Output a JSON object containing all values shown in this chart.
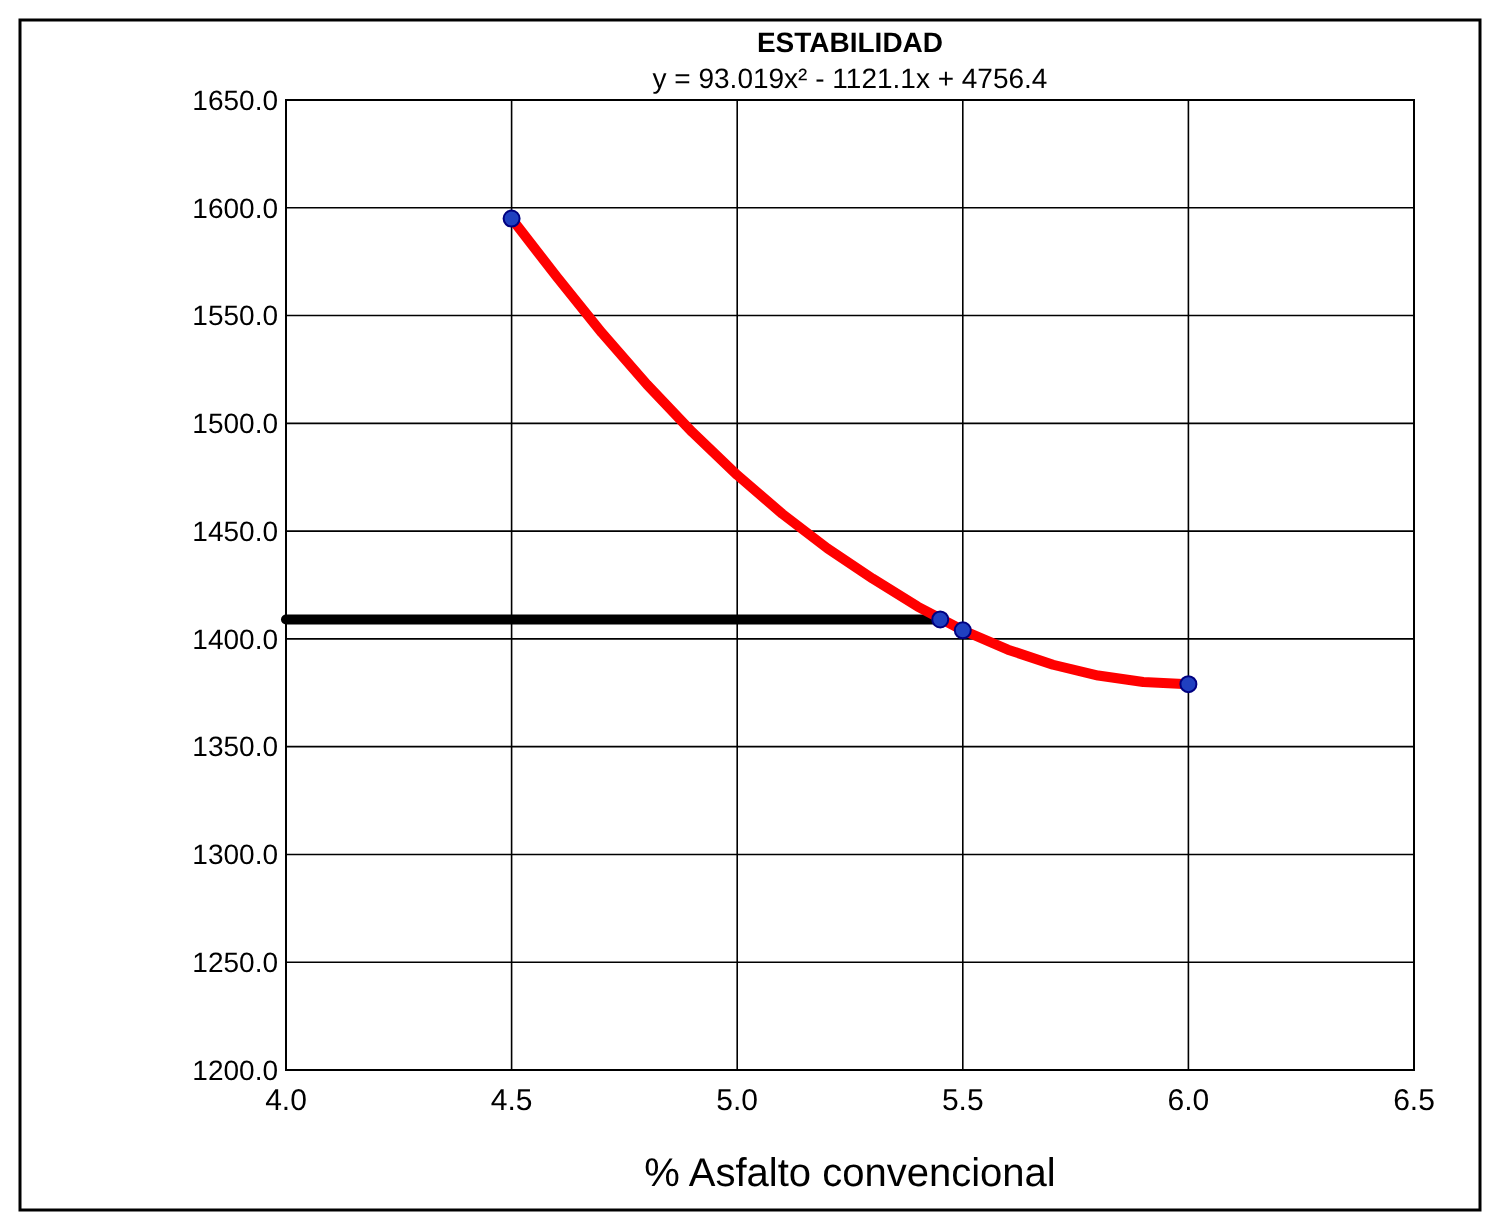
{
  "chart_data": {
    "type": "line",
    "title": "ESTABILIDAD",
    "subtitle": "y = 93.019x² - 1121.1x + 4756.4",
    "xlabel": "% Asfalto convencional",
    "grid": true,
    "xlim": [
      4.0,
      6.5
    ],
    "xticks": [
      {
        "value": 4.0,
        "label": "4.0"
      },
      {
        "value": 4.5,
        "label": "4.5"
      },
      {
        "value": 5.0,
        "label": "5.0"
      },
      {
        "value": 5.5,
        "label": "5.5"
      },
      {
        "value": 6.0,
        "label": "6.0"
      },
      {
        "value": 6.5,
        "label": "6.5"
      }
    ],
    "ylim": [
      1200,
      1650
    ],
    "yticks": [
      {
        "value": 1200,
        "label": "1200.0"
      },
      {
        "value": 1250,
        "label": "1250.0"
      },
      {
        "value": 1300,
        "label": "1300.0"
      },
      {
        "value": 1350,
        "label": "1350.0"
      },
      {
        "value": 1400,
        "label": "1400.0"
      },
      {
        "value": 1450,
        "label": "1450.0"
      },
      {
        "value": 1500,
        "label": "1500.0"
      },
      {
        "value": 1550,
        "label": "1550.0"
      },
      {
        "value": 1600,
        "label": "1600.0"
      },
      {
        "value": 1650,
        "label": "1650.0"
      }
    ],
    "series": [
      {
        "type": "line",
        "color": "#000000",
        "x": [
          4.0,
          5.45
        ],
        "values": [
          1409,
          1409
        ],
        "marker": "none"
      },
      {
        "color": "#ff0000",
        "x": [
          4.5,
          4.6,
          4.7,
          4.8,
          4.9,
          5.0,
          5.1,
          5.2,
          5.3,
          5.4,
          5.5,
          5.6,
          5.7,
          5.8,
          5.9,
          6.0
        ],
        "values": [
          1595,
          1568,
          1542,
          1518,
          1496,
          1476,
          1458,
          1442,
          1428,
          1415,
          1404,
          1395,
          1388,
          1383,
          1380,
          1379
        ],
        "marker": "none"
      },
      {
        "type": "scatter",
        "color": "#2040c0",
        "x": [
          4.5,
          5.45,
          5.5,
          6.0
        ],
        "values": [
          1595,
          1409,
          1404,
          1379
        ],
        "marker": "circle"
      }
    ]
  }
}
